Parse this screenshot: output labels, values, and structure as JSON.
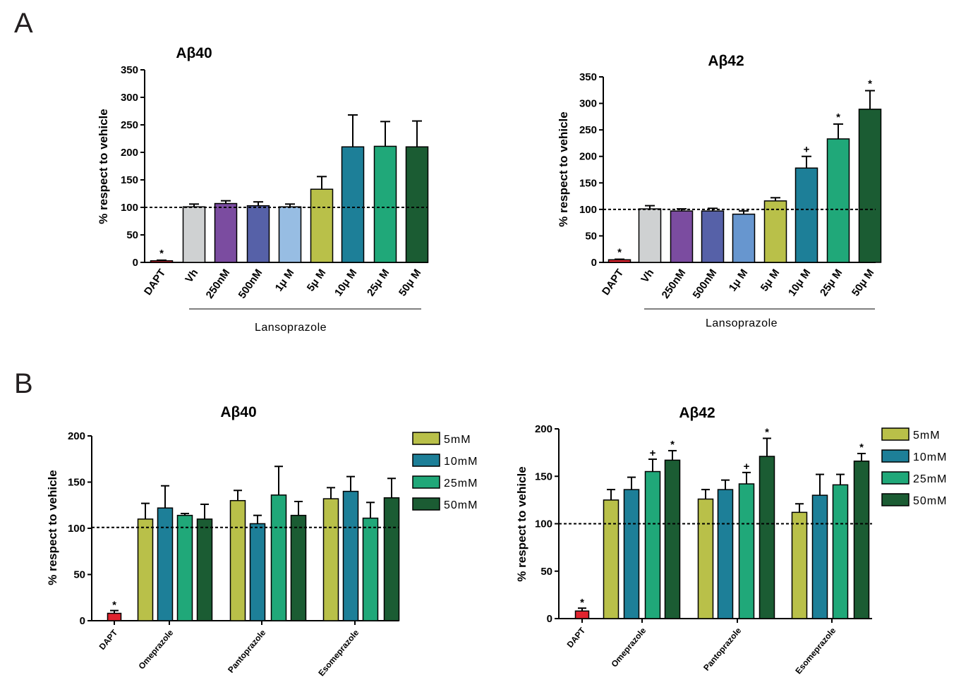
{
  "panels": {
    "A": "A",
    "B": "B"
  },
  "colors": {
    "DAPT": "#e0242f",
    "Vh": "#cfd1d2",
    "250nM": "#7b4ca0",
    "500nM": "#5661a8",
    "1uM_A40": "#97bde3",
    "1uM_A42": "#6796cf",
    "5uM": "#b9c049",
    "10uM": "#1d7f98",
    "25uM": "#20a879",
    "50uM": "#1b5c33",
    "edge": "#000000"
  },
  "chart_data": [
    {
      "id": "A1",
      "type": "bar",
      "title": "Aβ40",
      "ylabel": "% respect to vehicle",
      "ylim": [
        0,
        350
      ],
      "yticks": [
        "0",
        "50",
        "100",
        "150",
        "200",
        "250",
        "300",
        "350"
      ],
      "reference_line": 100,
      "group_label": "Lansoprazole",
      "categories": [
        "DAPT",
        "Vh",
        "250nM",
        "500nM",
        "1μ M",
        "5μ M",
        "10μ M",
        "25μ M",
        "50μ M"
      ],
      "values": [
        3,
        101,
        107,
        103,
        101,
        133,
        210,
        211,
        210
      ],
      "errors": [
        1,
        5,
        5,
        7,
        5,
        23,
        58,
        45,
        47
      ],
      "markers": [
        "*",
        "",
        "",
        "",
        "",
        "",
        "",
        "",
        ""
      ]
    },
    {
      "id": "A2",
      "type": "bar",
      "title": "Aβ42",
      "ylabel": "% respect to vehicle",
      "ylim": [
        0,
        350
      ],
      "yticks": [
        "0",
        "50",
        "100",
        "150",
        "200",
        "250",
        "300",
        "350"
      ],
      "reference_line": 100,
      "group_label": "Lansoprazole",
      "categories": [
        "DAPT",
        "Vh",
        "250nM",
        "500nM",
        "1μ M",
        "5μ M",
        "10μ M",
        "25μ M",
        "50μ M"
      ],
      "values": [
        5,
        101,
        97,
        97,
        91,
        116,
        178,
        233,
        289
      ],
      "errors": [
        1,
        6,
        4,
        5,
        6,
        6,
        22,
        28,
        35
      ],
      "markers": [
        "*",
        "",
        "",
        "",
        "",
        "",
        "+",
        "*",
        "*"
      ]
    },
    {
      "id": "B1",
      "type": "bar",
      "title": "Aβ40",
      "ylabel": "% respect to vehicle",
      "ylim": [
        0,
        200
      ],
      "yticks": [
        "0",
        "50",
        "100",
        "150",
        "200"
      ],
      "reference_line": 101,
      "legend_position": "top-right",
      "dapt": {
        "label": "DAPT",
        "value": 8,
        "error": 3,
        "marker": "*"
      },
      "categories": [
        "Omeprazole",
        "Pantoprazole",
        "Esomeprazole"
      ],
      "series": [
        {
          "name": "5mM",
          "values": [
            110,
            130,
            132
          ],
          "errors": [
            17,
            11,
            12
          ]
        },
        {
          "name": "10mM",
          "values": [
            122,
            105,
            140
          ],
          "errors": [
            24,
            9,
            16
          ]
        },
        {
          "name": "25mM",
          "values": [
            114,
            136,
            111
          ],
          "errors": [
            2,
            31,
            17
          ]
        },
        {
          "name": "50mM",
          "values": [
            110,
            114,
            133
          ],
          "errors": [
            16,
            15,
            21
          ]
        }
      ],
      "markers": [
        [
          "",
          "",
          ""
        ],
        [
          "",
          "",
          ""
        ],
        [
          "",
          "",
          ""
        ],
        [
          "",
          "",
          ""
        ]
      ]
    },
    {
      "id": "B2",
      "type": "bar",
      "title": "Aβ42",
      "ylabel": "% respect to vehicle",
      "ylim": [
        0,
        200
      ],
      "yticks": [
        "0",
        "50",
        "100",
        "150",
        "200"
      ],
      "reference_line": 100,
      "legend_position": "top-right",
      "dapt": {
        "label": "DAPT",
        "value": 8,
        "error": 3,
        "marker": "*"
      },
      "categories": [
        "Omeprazole",
        "Pantoprazole",
        "Esomeprazole"
      ],
      "series": [
        {
          "name": "5mM",
          "values": [
            125,
            126,
            112
          ],
          "errors": [
            11,
            10,
            9
          ]
        },
        {
          "name": "10mM",
          "values": [
            136,
            136,
            130
          ],
          "errors": [
            13,
            10,
            22
          ]
        },
        {
          "name": "25mM",
          "values": [
            155,
            142,
            141
          ],
          "errors": [
            13,
            12,
            11
          ]
        },
        {
          "name": "50mM",
          "values": [
            167,
            171,
            166
          ],
          "errors": [
            10,
            19,
            8
          ]
        }
      ],
      "markers": [
        [
          "",
          "",
          ""
        ],
        [
          "",
          "",
          ""
        ],
        [
          "+",
          "+",
          ""
        ],
        [
          "*",
          "*",
          "*"
        ]
      ]
    }
  ]
}
